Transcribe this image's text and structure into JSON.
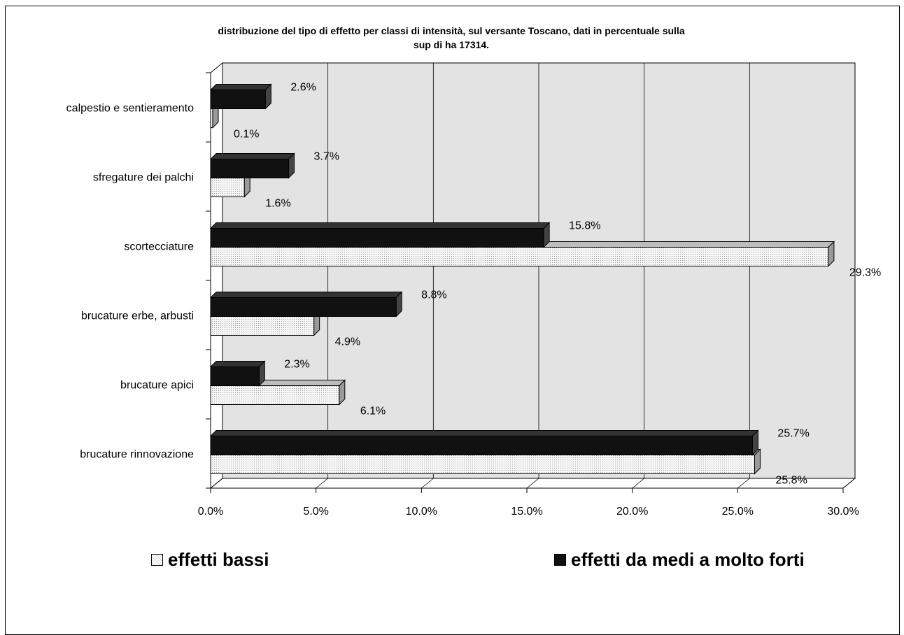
{
  "title": "distribuzione del tipo di effetto per classi di intensità, sul versante Toscano, dati in percentuale sulla\nsup di ha 17314.",
  "legend": {
    "low": "effetti bassi",
    "high": "effetti da medi a molto forti"
  },
  "colors": {
    "wall": "#e3e3e3",
    "series_low": "#f2f2f2",
    "series_high": "#111111",
    "grid": "#000000"
  },
  "chart_data": {
    "type": "bar",
    "orientation": "horizontal",
    "title": "distribuzione del tipo di effetto per classi di intensità, sul versante Toscano, dati in percentuale sulla sup di ha 17314.",
    "categories": [
      "calpestio e sentieramento",
      "sfregature dei palchi",
      "scortecciature",
      "brucature erbe, arbusti",
      "brucature apici",
      "brucature rinnovazione"
    ],
    "series": [
      {
        "name": "effetti bassi",
        "values": [
          0.1,
          1.6,
          29.3,
          4.9,
          6.1,
          25.8
        ],
        "labels": [
          "0.1%",
          "1.6%",
          "29.3%",
          "4.9%",
          "6.1%",
          "25.8%"
        ]
      },
      {
        "name": "effetti da medi a molto forti",
        "values": [
          2.6,
          3.7,
          15.8,
          8.8,
          2.3,
          25.7
        ],
        "labels": [
          "2.6%",
          "3.7%",
          "15.8%",
          "8.8%",
          "2.3%",
          "25.7%"
        ]
      }
    ],
    "xlim": [
      0,
      30
    ],
    "xticks": [
      "0.0%",
      "5.0%",
      "10.0%",
      "15.0%",
      "20.0%",
      "25.0%",
      "30.0%"
    ],
    "grid": true,
    "legend_position": "bottom"
  }
}
